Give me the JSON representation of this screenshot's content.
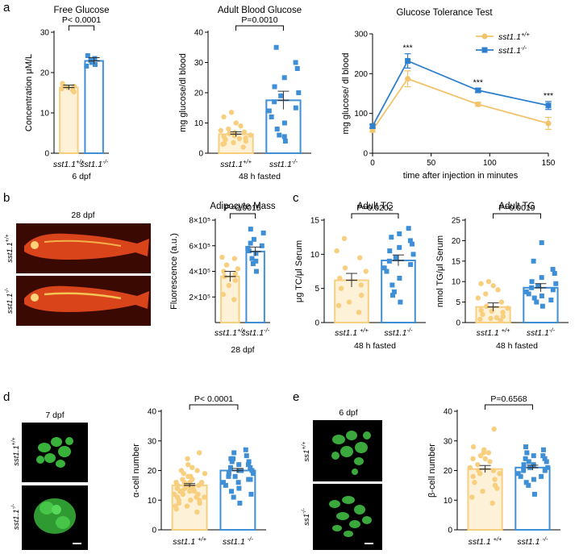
{
  "colors": {
    "wt": "#f8cf7f",
    "ko": "#3f8fd6",
    "wt_line": "#f1c36a",
    "ko_line": "#2f7fcf"
  },
  "panel_labels": {
    "a": "a",
    "b": "b",
    "c": "c",
    "d": "d",
    "e": "e"
  },
  "group_labels": {
    "wt_base": "sst1.1",
    "ko_base": "sst1.1",
    "wt_sup": "+/+",
    "ko_sup": "-/-",
    "ss1_base": "ss1",
    "wt_space": "sst1.1 ",
    "ko_space": "sst1.1 "
  },
  "images": {
    "b_title": "28 dpf",
    "b_top": "sst1.1",
    "b_top_sup": "+/+",
    "b_bottom": "sst1.1",
    "b_bottom_sup": "-/-",
    "d_title": "7 dpf",
    "d_top": "sst1.1",
    "d_top_sup": "+/+",
    "d_bottom": "sst1.1",
    "d_bottom_sup": "-/-",
    "e_title": "6 dpf",
    "e_top": "ss1",
    "e_top_sup": "+/+",
    "e_bottom": "ss1",
    "e_bottom_sup": "-/-"
  },
  "chart_data": [
    {
      "id": "free_glucose",
      "type": "bar",
      "title": "Free Glucose",
      "ylabel": "Concentration μM/L",
      "xsub": "6 dpf",
      "ylim": [
        0,
        30
      ],
      "yticks": [
        0,
        10,
        20,
        30
      ],
      "sig": "P< 0.0001",
      "categories": [
        "sst1.1+/+",
        "sst1.1-/-"
      ],
      "values": [
        16.3,
        22.9
      ],
      "sem": [
        0.6,
        0.8
      ],
      "points": [
        [
          15.6,
          16.0,
          16.3,
          16.6,
          16.9,
          15.2,
          17.3
        ],
        [
          22.0,
          22.5,
          23.0,
          23.5,
          24.2,
          21.6
        ]
      ]
    },
    {
      "id": "adult_blood_glucose",
      "type": "bar",
      "title": "Adult Blood Glucose",
      "ylabel": "mg glucose/dl blood",
      "xsub": "48 h fasted",
      "ylim": [
        0,
        40
      ],
      "yticks": [
        0,
        10,
        20,
        30,
        40
      ],
      "sig": "P=0.0010",
      "categories": [
        "sst1.1+/+",
        "sst1.1-/-"
      ],
      "values": [
        6.3,
        17.5
      ],
      "sem": [
        0.8,
        3.0
      ],
      "points": [
        [
          2.0,
          3.0,
          3.5,
          4.0,
          4.5,
          5.0,
          5.5,
          6.0,
          6.5,
          7.0,
          7.5,
          8.0,
          9.0,
          10.0,
          12.0,
          13.5,
          4.8,
          5.8,
          6.8,
          3.2
        ],
        [
          4.0,
          6.0,
          8.0,
          10.0,
          12.0,
          14.0,
          15.0,
          17.0,
          19.0,
          20.0,
          22.0,
          25.0,
          28.0,
          30.0,
          35.0,
          5.5
        ]
      ]
    },
    {
      "id": "gtt",
      "type": "line",
      "title": "Glucose Tolerance Test",
      "ylabel": "mg glucose/ dl blood",
      "xlabel": "time after injection in minutes",
      "xlim": [
        0,
        150
      ],
      "ylim": [
        0,
        300
      ],
      "xticks": [
        0,
        50,
        100,
        150
      ],
      "yticks": [
        0,
        100,
        200,
        300
      ],
      "x": [
        0,
        30,
        90,
        150
      ],
      "series": [
        {
          "name": "sst1.1+/+",
          "base": "sst1.1",
          "sup": "+/+",
          "values": [
            58,
            187,
            123,
            75
          ],
          "sem": [
            5,
            20,
            5,
            15
          ]
        },
        {
          "name": "sst1.1-/-",
          "base": "sst1.1",
          "sup": "-/-",
          "values": [
            68,
            232,
            158,
            120
          ],
          "sem": [
            5,
            18,
            5,
            10
          ]
        }
      ],
      "annotations": [
        "***",
        "***",
        "***"
      ]
    },
    {
      "id": "adipocyte",
      "type": "bar",
      "title": "Adipocyte Mass",
      "ylabel": "Fluorescence (a.u.)",
      "xsub": "28 dpf",
      "ylim": [
        0,
        800000
      ],
      "yticks": [
        200000,
        400000,
        600000,
        800000
      ],
      "ytick_labels": [
        "2×10⁵",
        "4×10⁵",
        "6×10⁵",
        "8×10⁵"
      ],
      "sig": "P=0.0015",
      "categories": [
        "sst1.1+/+",
        "sst1.1-/-"
      ],
      "values": [
        360000,
        555000
      ],
      "sem": [
        40000,
        35000
      ],
      "points": [
        [
          180000,
          220000,
          290000,
          330000,
          360000,
          380000,
          400000,
          420000,
          450000,
          500000,
          510000
        ],
        [
          400000,
          460000,
          500000,
          540000,
          560000,
          580000,
          600000,
          620000,
          650000,
          700000,
          730000,
          480000
        ]
      ]
    },
    {
      "id": "adult_tc",
      "type": "bar",
      "title": "Adult TC",
      "ylabel": "μg TC/μl Serum",
      "xsub": "48 h fasted",
      "ylim": [
        0,
        15
      ],
      "yticks": [
        0,
        5,
        10,
        15
      ],
      "sig": "P=0.0202",
      "categories": [
        "sst1.1 +/+",
        "sst1.1-/-"
      ],
      "values": [
        6.2,
        9.1
      ],
      "sem": [
        1.0,
        0.8
      ],
      "points": [
        [
          1.5,
          2.5,
          3.0,
          4.0,
          5.0,
          5.5,
          6.5,
          7.5,
          8.0,
          9.5,
          10.5,
          12.3
        ],
        [
          3.0,
          4.5,
          5.5,
          6.5,
          7.5,
          8.0,
          8.5,
          9.0,
          9.5,
          10.0,
          10.5,
          11.0,
          11.5,
          12.0,
          12.5,
          13.0,
          13.8,
          4.0
        ]
      ]
    },
    {
      "id": "adult_tg",
      "type": "bar",
      "title": "Adult TG",
      "ylabel": "nmol TG/μl Serum",
      "xsub": "48 h fasted",
      "ylim": [
        0,
        25
      ],
      "yticks": [
        0,
        5,
        10,
        15,
        20,
        25
      ],
      "sig": "P=0.0019",
      "categories": [
        "sst1.1 +/+",
        "sst1.1-/-"
      ],
      "values": [
        3.8,
        8.5
      ],
      "sem": [
        1.0,
        1.0
      ],
      "points": [
        [
          0.5,
          0.8,
          1.0,
          1.5,
          2.0,
          2.5,
          3.0,
          3.5,
          4.0,
          5.0,
          6.0,
          7.0,
          8.0,
          9.0,
          9.5,
          10.0,
          1.2,
          2.8
        ],
        [
          4.0,
          5.0,
          6.0,
          6.5,
          7.0,
          7.5,
          8.0,
          8.5,
          9.0,
          9.5,
          10.0,
          11.0,
          12.0,
          13.0,
          15.0,
          19.5,
          5.5
        ]
      ]
    },
    {
      "id": "alpha_cell",
      "type": "bar",
      "title": "",
      "ylabel": "α-cell number",
      "xsub": "",
      "ylim": [
        0,
        40
      ],
      "yticks": [
        0,
        10,
        20,
        30,
        40
      ],
      "sig": "P< 0.0001",
      "categories": [
        "sst1.1 +/+",
        "sst1.1 -/-"
      ],
      "values": [
        15.0,
        20.0
      ],
      "sem": [
        0.6,
        0.7
      ],
      "points": [
        [
          6,
          7,
          8,
          9,
          10,
          10,
          11,
          11,
          12,
          12,
          12,
          13,
          13,
          13,
          14,
          14,
          14,
          15,
          15,
          15,
          15,
          16,
          16,
          16,
          17,
          17,
          17,
          18,
          18,
          19,
          19,
          20,
          21,
          22,
          24,
          26,
          8,
          9,
          10,
          11,
          13,
          14,
          16,
          18,
          20
        ],
        [
          9,
          11,
          13,
          14,
          15,
          16,
          17,
          18,
          18,
          19,
          19,
          20,
          20,
          21,
          21,
          22,
          22,
          23,
          23,
          24,
          25,
          26,
          27,
          12,
          16,
          20,
          24,
          17
        ]
      ]
    },
    {
      "id": "beta_cell",
      "type": "bar",
      "title": "",
      "ylabel": "β-cell number",
      "xsub": "",
      "ylim": [
        0,
        40
      ],
      "yticks": [
        0,
        10,
        20,
        30,
        40
      ],
      "sig": "P=0.6568",
      "categories": [
        "sst1.1 +/+",
        "sst1.1 -/-"
      ],
      "values": [
        20.5,
        21.0
      ],
      "sem": [
        1.2,
        0.8
      ],
      "points": [
        [
          9,
          11,
          13,
          15,
          16,
          17,
          18,
          19,
          20,
          20,
          21,
          22,
          23,
          24,
          24,
          25,
          26,
          26,
          27,
          28,
          34,
          14,
          19
        ],
        [
          12,
          15,
          16,
          17,
          18,
          19,
          20,
          20,
          21,
          21,
          22,
          22,
          23,
          24,
          24,
          25,
          25,
          26,
          27,
          28,
          18,
          23
        ]
      ]
    }
  ]
}
